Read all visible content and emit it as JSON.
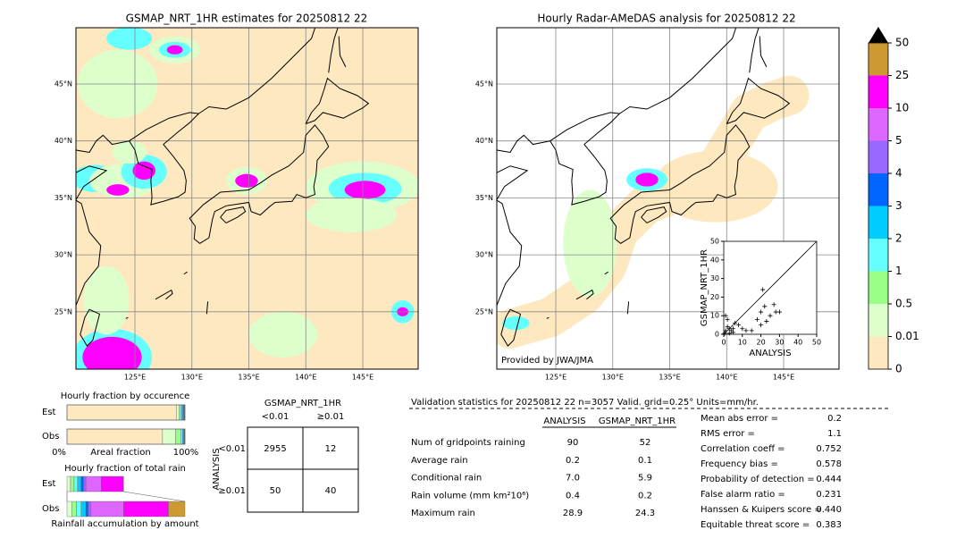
{
  "left_map": {
    "title": "GSMAP_NRT_1HR estimates for 20250812 22"
  },
  "right_map": {
    "title": "Hourly Radar-AMeDAS analysis for 20250812 22",
    "credit": "Provided by JWA/JMA"
  },
  "lat_labels": [
    "45°N",
    "40°N",
    "35°N",
    "30°N",
    "25°N"
  ],
  "lon_labels": [
    "125°E",
    "130°E",
    "135°E",
    "140°E",
    "145°E"
  ],
  "colorbar": {
    "ticks": [
      0,
      0.01,
      0.5,
      1,
      2,
      3,
      4,
      5,
      10,
      25,
      50
    ],
    "colors": [
      "#fee8bf",
      "#dcffcc",
      "#99ff88",
      "#66ffff",
      "#00ccff",
      "#0066ff",
      "#9966ff",
      "#dd66ff",
      "#ff00ff",
      "#cc9933"
    ],
    "extend_color": "#000000"
  },
  "chart_data": {
    "type": "scatter",
    "xlabel": "ANALYSIS",
    "ylabel": "GSMAP_NRT_1HR",
    "xlim": [
      0,
      50
    ],
    "ylim": [
      0,
      50
    ],
    "xticks": [
      0,
      10,
      20,
      30,
      40,
      50
    ],
    "yticks": [
      0,
      10,
      20,
      30,
      40,
      50
    ],
    "x": [
      0.5,
      1,
      2,
      3,
      4,
      5,
      5,
      6,
      8,
      10,
      12,
      15,
      18,
      20,
      20,
      21,
      22,
      23,
      25,
      27,
      28,
      30,
      1,
      2,
      3
    ],
    "y": [
      0.5,
      2,
      4,
      3,
      2,
      1,
      3,
      6,
      5,
      3,
      2,
      2,
      8,
      12,
      5,
      24,
      15,
      7,
      10,
      16,
      12,
      12,
      10,
      8,
      0.5
    ],
    "color": "#000000"
  },
  "occurrence": {
    "title": "Hourly fraction by occurence",
    "rows": [
      "Est",
      "Obs"
    ],
    "axis_left": "0%",
    "axis_label": "Areal fraction",
    "axis_right": "100%",
    "est": [
      93,
      2,
      1.5,
      1,
      0.8,
      0.5,
      0.5,
      0.4,
      0.3,
      0
    ],
    "obs": [
      81,
      11,
      4.5,
      1.5,
      1,
      0.5,
      0.3,
      0.2,
      0,
      0
    ]
  },
  "rain": {
    "title": "Hourly fraction of total rain",
    "rows": [
      "Est",
      "Obs"
    ],
    "footer": "Rainfall accumulation by amount",
    "est": [
      0,
      3,
      3,
      3,
      3,
      2,
      2,
      13,
      19,
      0
    ],
    "obs": [
      0,
      4,
      4,
      4,
      4,
      2,
      2,
      28,
      38,
      14
    ]
  },
  "contingency": {
    "title": "GSMAP_NRT_1HR",
    "cols": [
      "<0.01",
      "≥0.01"
    ],
    "side": "ANALYSIS",
    "rows": [
      "<0.01",
      "≥0.01"
    ],
    "cells": [
      [
        "2955",
        "12"
      ],
      [
        "50",
        "40"
      ]
    ]
  },
  "validation": {
    "header": "Validation statistics for 20250812 22  n=3057 Valid. grid=0.25° Units=mm/hr.",
    "cols": [
      "ANALYSIS",
      "GSMAP_NRT_1HR"
    ],
    "rows": [
      [
        "Num of gridpoints raining",
        "90",
        "52"
      ],
      [
        "Average rain",
        "0.2",
        "0.1"
      ],
      [
        "Conditional rain",
        "7.0",
        "5.9"
      ],
      [
        "Rain volume (mm km²10⁶)",
        "0.4",
        "0.2"
      ],
      [
        "Maximum rain",
        "28.9",
        "24.3"
      ]
    ]
  },
  "scores": [
    [
      "Mean abs error =",
      "0.2"
    ],
    [
      "RMS error =",
      "1.1"
    ],
    [
      "Correlation coeff =",
      "0.752"
    ],
    [
      "Frequency bias =",
      "0.578"
    ],
    [
      "Probability of detection =",
      "0.444"
    ],
    [
      "False alarm ratio =",
      "0.231"
    ],
    [
      "Hanssen & Kuipers score =",
      "0.440"
    ],
    [
      "Equitable threat score =",
      "0.383"
    ]
  ]
}
